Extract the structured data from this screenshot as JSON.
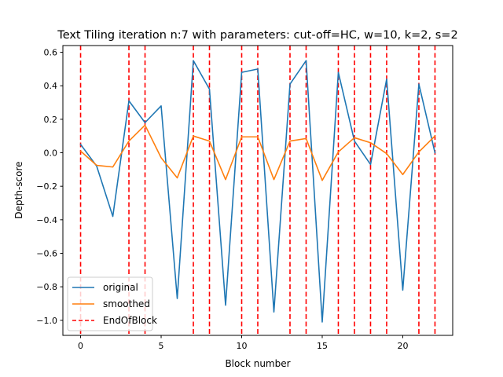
{
  "chart_data": {
    "type": "line",
    "title": "Text Tiling iteration n:7 with parameters: cut-off=HC, w=10, k=2, s=2",
    "xlabel": "Block number",
    "ylabel": "Depth-score",
    "xlim": [
      -1.1,
      23.1
    ],
    "ylim": [
      -1.09,
      0.64
    ],
    "xticks": [
      0,
      5,
      10,
      15,
      20
    ],
    "xtick_labels": [
      "0",
      "5",
      "10",
      "15",
      "20"
    ],
    "yticks": [
      -1.0,
      -0.8,
      -0.6,
      -0.4,
      -0.2,
      0.0,
      0.2,
      0.4,
      0.6
    ],
    "ytick_labels": [
      "−1.0",
      "−0.8",
      "−0.6",
      "−0.4",
      "−0.2",
      "0.0",
      "0.2",
      "0.4",
      "0.6"
    ],
    "grid": false,
    "legend_position": "lower-left",
    "x": [
      0,
      1,
      2,
      3,
      4,
      5,
      6,
      7,
      8,
      9,
      10,
      11,
      12,
      13,
      14,
      15,
      16,
      17,
      18,
      19,
      20,
      21,
      22
    ],
    "series": [
      {
        "name": "original",
        "color": "#1f77b4",
        "style": "solid",
        "values": [
          0.05,
          -0.08,
          -0.38,
          0.31,
          0.18,
          0.28,
          -0.87,
          0.55,
          0.38,
          -0.91,
          0.48,
          0.5,
          -0.95,
          0.41,
          0.55,
          -1.01,
          0.48,
          0.07,
          -0.07,
          0.44,
          -0.82,
          0.41,
          0.0
        ]
      },
      {
        "name": "smoothed",
        "color": "#ff7f0e",
        "style": "solid",
        "values": [
          0.01,
          -0.075,
          -0.085,
          0.07,
          0.165,
          -0.03,
          -0.15,
          0.1,
          0.07,
          -0.16,
          0.095,
          0.095,
          -0.16,
          0.07,
          0.085,
          -0.165,
          0.005,
          0.09,
          0.06,
          -0.005,
          -0.13,
          0.005,
          0.1
        ]
      }
    ],
    "vlines": {
      "name": "EndOfBlock",
      "color": "#ff0000",
      "style": "dashed",
      "x": [
        0,
        3,
        4,
        7,
        8,
        10,
        11,
        13,
        14,
        16,
        17,
        18,
        19,
        21,
        22
      ]
    }
  }
}
